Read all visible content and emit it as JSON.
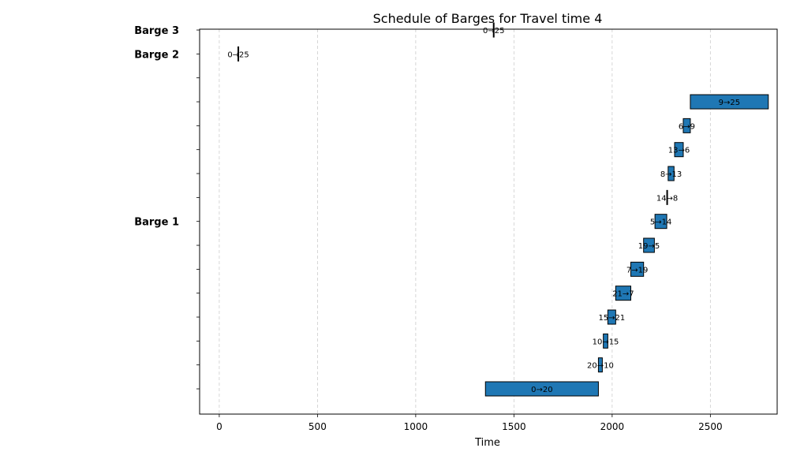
{
  "chart_data": {
    "type": "gantt",
    "title": "Schedule of Barges for Travel time 4",
    "xlabel": "Time",
    "ylabel": "",
    "xlim": [
      -100,
      2840
    ],
    "xticks": [
      0,
      500,
      1000,
      1500,
      2000,
      2500
    ],
    "grid": "x-dashed",
    "color": "#1f77b4",
    "row_labels": [
      {
        "row": 7,
        "label": "Barge 1"
      },
      {
        "row": 14,
        "label": "Barge 2"
      },
      {
        "row": 15,
        "label": "Barge 3"
      }
    ],
    "tasks": [
      {
        "row": 0,
        "start": 1355,
        "end": 1930,
        "label": "0→20"
      },
      {
        "row": 1,
        "start": 1930,
        "end": 1950,
        "label": "20→10"
      },
      {
        "row": 2,
        "start": 1955,
        "end": 1978,
        "label": "10→15"
      },
      {
        "row": 3,
        "start": 1978,
        "end": 2018,
        "label": "15→21"
      },
      {
        "row": 4,
        "start": 2018,
        "end": 2095,
        "label": "21→7"
      },
      {
        "row": 5,
        "start": 2095,
        "end": 2160,
        "label": "7→19"
      },
      {
        "row": 6,
        "start": 2160,
        "end": 2215,
        "label": "19→5"
      },
      {
        "row": 7,
        "start": 2218,
        "end": 2278,
        "label": "5→14"
      },
      {
        "row": 8,
        "start": 2278,
        "end": 2282,
        "label": "14→8"
      },
      {
        "row": 9,
        "start": 2285,
        "end": 2315,
        "label": "8→13"
      },
      {
        "row": 10,
        "start": 2318,
        "end": 2362,
        "label": "13→6"
      },
      {
        "row": 11,
        "start": 2362,
        "end": 2398,
        "label": "6→9"
      },
      {
        "row": 12,
        "start": 2398,
        "end": 2795,
        "label": "9→25"
      },
      {
        "row": 14,
        "start": 95,
        "end": 99,
        "label": "0→25"
      },
      {
        "row": 15,
        "start": 1395,
        "end": 1399,
        "label": "0→25"
      }
    ]
  }
}
